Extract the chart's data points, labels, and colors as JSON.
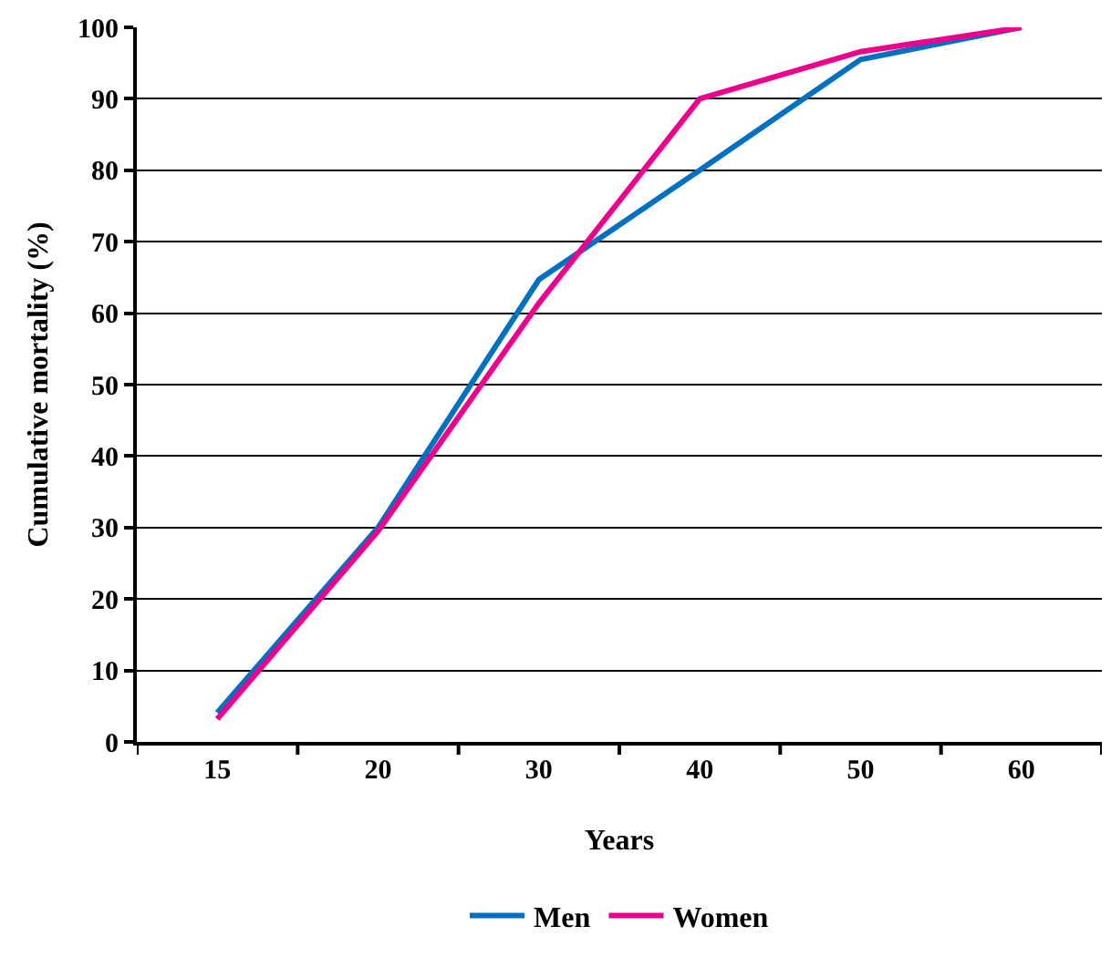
{
  "chart_data": {
    "type": "line",
    "xlabel": "Years",
    "ylabel": "Cumulative mortality (%)",
    "categories": [
      "15",
      "20",
      "30",
      "40",
      "50",
      "60"
    ],
    "series": [
      {
        "name": "Men",
        "color": "#0070c0",
        "values": [
          4.1,
          30,
          64.7,
          80,
          95.5,
          100
        ]
      },
      {
        "name": "Women",
        "color": "#ec008c",
        "values": [
          3.2,
          29.5,
          61.4,
          90,
          96.6,
          100
        ]
      }
    ],
    "ylim": [
      0,
      100
    ],
    "yticks": [
      0,
      10,
      20,
      30,
      40,
      50,
      60,
      70,
      80,
      90,
      100
    ],
    "grid": "y",
    "legend": "bottom",
    "marker": "none",
    "line_style": "solid"
  }
}
